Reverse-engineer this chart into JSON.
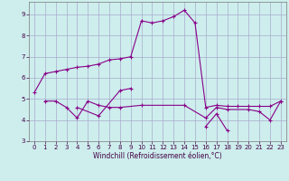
{
  "xlabel": "Windchill (Refroidissement éolien,°C)",
  "xlim_min": -0.5,
  "xlim_max": 23.5,
  "ylim_min": 3.0,
  "ylim_max": 9.6,
  "yticks": [
    3,
    4,
    5,
    6,
    7,
    8,
    9
  ],
  "xticks": [
    0,
    1,
    2,
    3,
    4,
    5,
    6,
    7,
    8,
    9,
    10,
    11,
    12,
    13,
    14,
    15,
    16,
    17,
    18,
    19,
    20,
    21,
    22,
    23
  ],
  "bg_color": "#cdeeed",
  "grid_color": "#aaaacc",
  "line_color": "#880088",
  "series": [
    {
      "x": [
        0,
        1,
        2,
        3,
        4,
        5,
        6,
        7,
        8,
        9,
        10,
        11,
        12,
        13,
        14,
        15,
        16,
        17,
        18,
        19,
        20,
        21,
        22,
        23
      ],
      "y": [
        5.3,
        6.2,
        6.3,
        6.4,
        6.5,
        6.55,
        6.65,
        6.85,
        6.9,
        7.0,
        8.7,
        8.6,
        8.7,
        8.9,
        9.2,
        8.6,
        4.6,
        4.7,
        4.65,
        4.65,
        4.65,
        4.65,
        4.65,
        4.9
      ]
    },
    {
      "x": [
        1,
        2,
        3,
        4,
        5,
        6,
        7,
        8,
        10,
        14,
        16,
        17,
        18,
        20,
        21,
        22,
        23
      ],
      "y": [
        4.9,
        4.9,
        4.6,
        4.1,
        4.9,
        4.7,
        4.6,
        4.6,
        4.7,
        4.7,
        4.1,
        4.6,
        4.5,
        4.5,
        4.4,
        4.0,
        4.9
      ]
    },
    {
      "x": [
        16,
        17,
        18
      ],
      "y": [
        3.7,
        4.3,
        3.5
      ]
    },
    {
      "x": [
        4,
        6,
        8,
        9
      ],
      "y": [
        4.6,
        4.2,
        5.4,
        5.5
      ]
    }
  ]
}
